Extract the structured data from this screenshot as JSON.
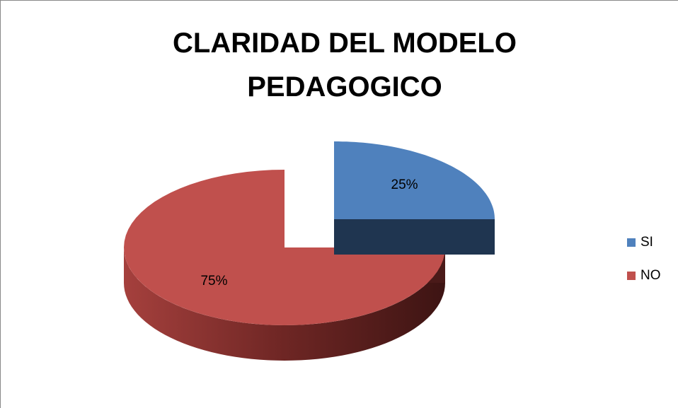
{
  "chart_data": {
    "type": "pie",
    "title": "CLARIDAD DEL MODELO PEDAGOGICO",
    "categories": [
      "SI",
      "NO"
    ],
    "values": [
      25,
      75
    ],
    "value_labels": [
      "25%",
      "75%"
    ],
    "colors": [
      "#4f81bd",
      "#c0504d"
    ],
    "legend": "right"
  }
}
